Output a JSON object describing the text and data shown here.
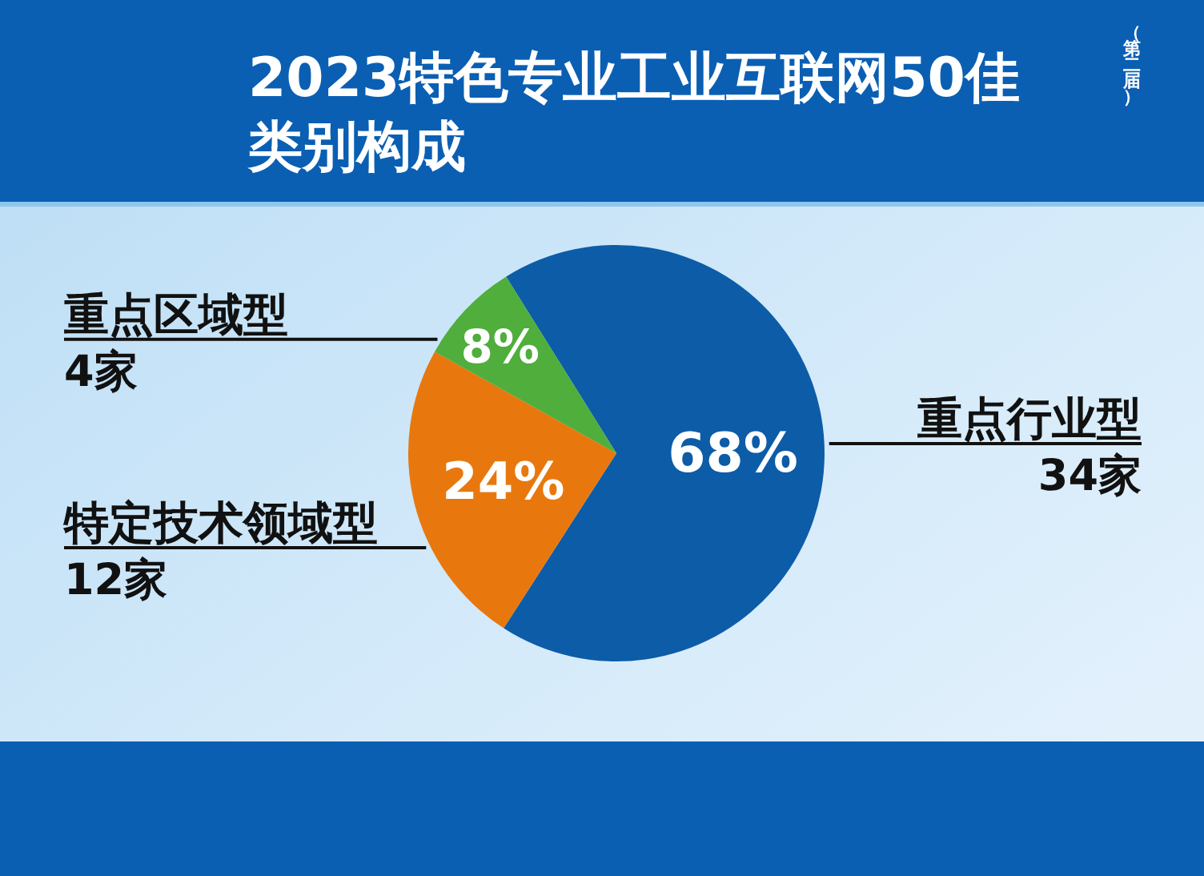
{
  "chart_data": {
    "type": "pie",
    "title": "2023特色专业工业互联网50佳类别构成",
    "subtitle": "（第二届）",
    "categories": [
      "重点行业型\n34家",
      "特定技术领域型\n12家",
      "重点区域型\n4家"
    ],
    "values": [
      68,
      24,
      8
    ],
    "colors": [
      "#0d5ca8",
      "#e8780e",
      "#4fae3c"
    ],
    "value_labels": [
      "68%",
      "24%",
      "8%"
    ]
  }
}
